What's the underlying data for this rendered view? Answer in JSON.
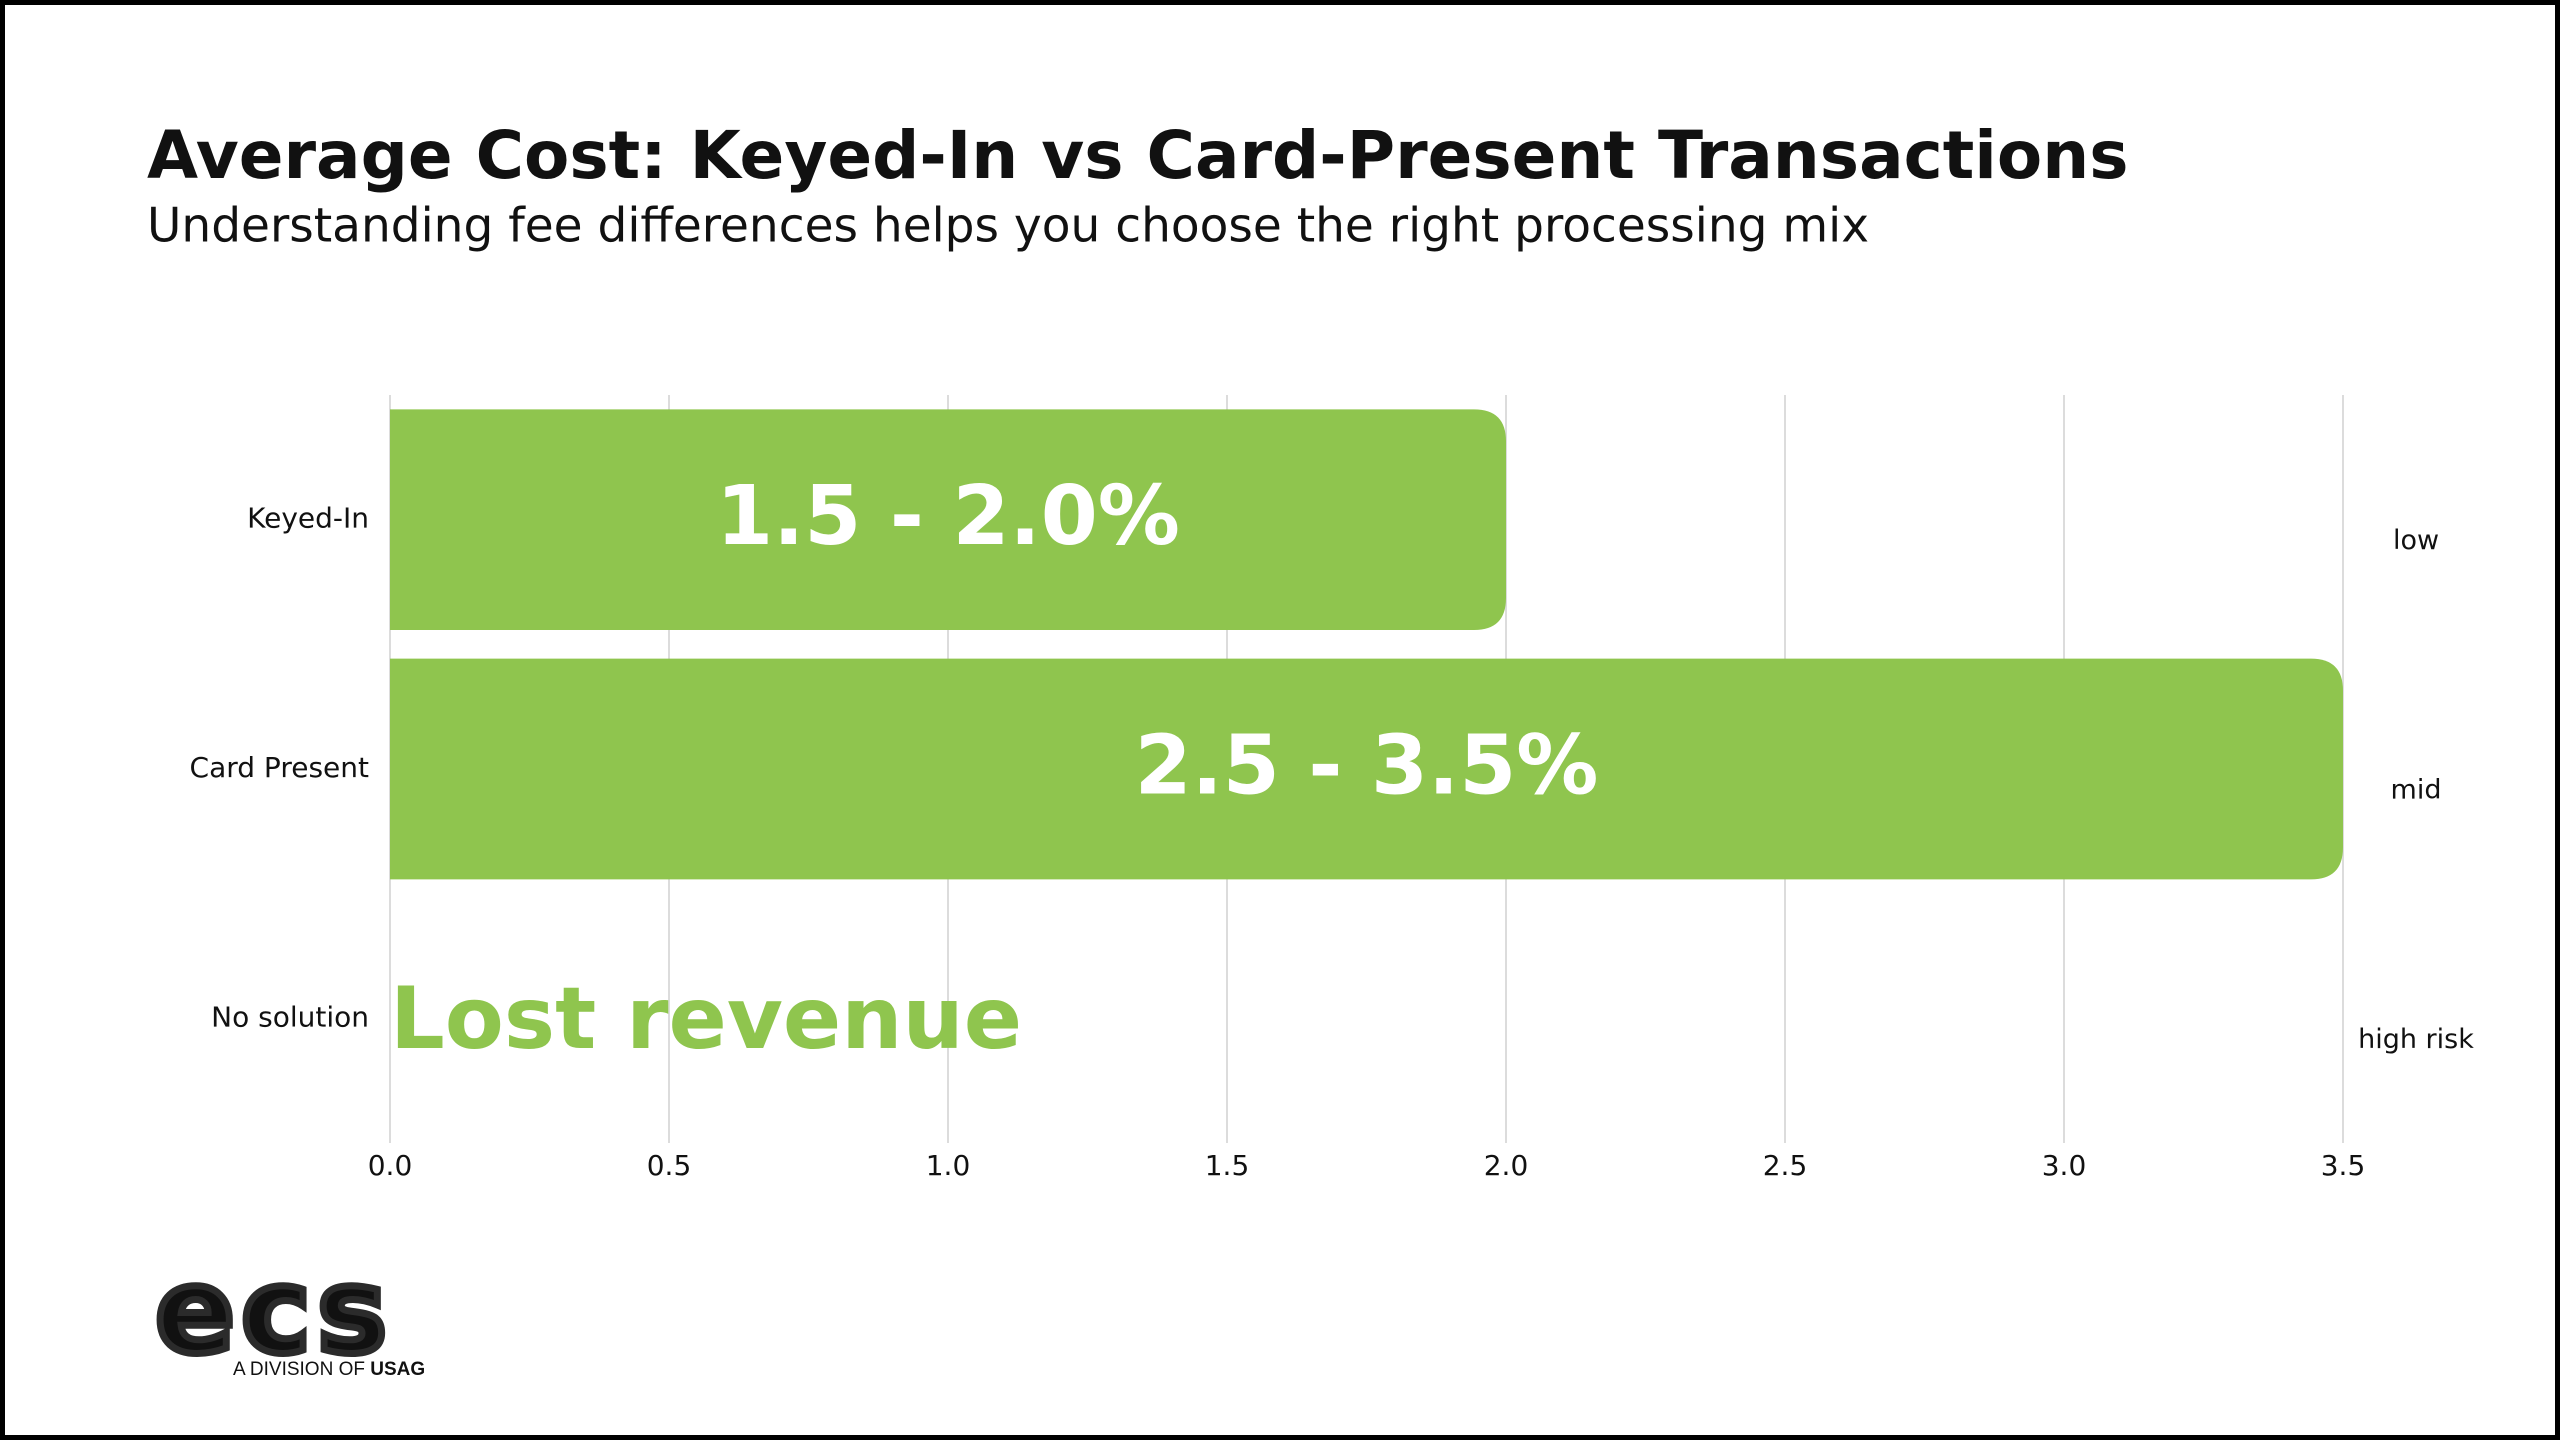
{
  "chart_data": {
    "type": "bar",
    "orientation": "horizontal",
    "title": "Average Cost: Keyed-In vs Card-Present Transactions",
    "subtitle": "Understanding fee differences helps you choose the right processing mix",
    "categories": [
      "Keyed-In",
      "Card Present",
      "No solution"
    ],
    "values": [
      2.0,
      3.5,
      null
    ],
    "value_labels": [
      "1.5 - 2.0%",
      "2.5 - 3.5%",
      "Lost revenue"
    ],
    "risk_labels": [
      "low",
      "mid",
      "high risk"
    ],
    "color": "#8fc54e",
    "xlim": [
      0,
      3.5
    ],
    "xticks": [
      {
        "value": 0,
        "label": "0.0"
      },
      0.5,
      {
        "value": 1,
        "label": "1.0"
      },
      1.5,
      {
        "value": 2,
        "label": "2.0"
      },
      2.5,
      {
        "value": 3,
        "label": "3.0"
      },
      3.5
    ],
    "grid": true
  },
  "logo": {
    "text": "ecs",
    "tagline": "A DIVISION OF",
    "tagline_brand": "USAG"
  }
}
